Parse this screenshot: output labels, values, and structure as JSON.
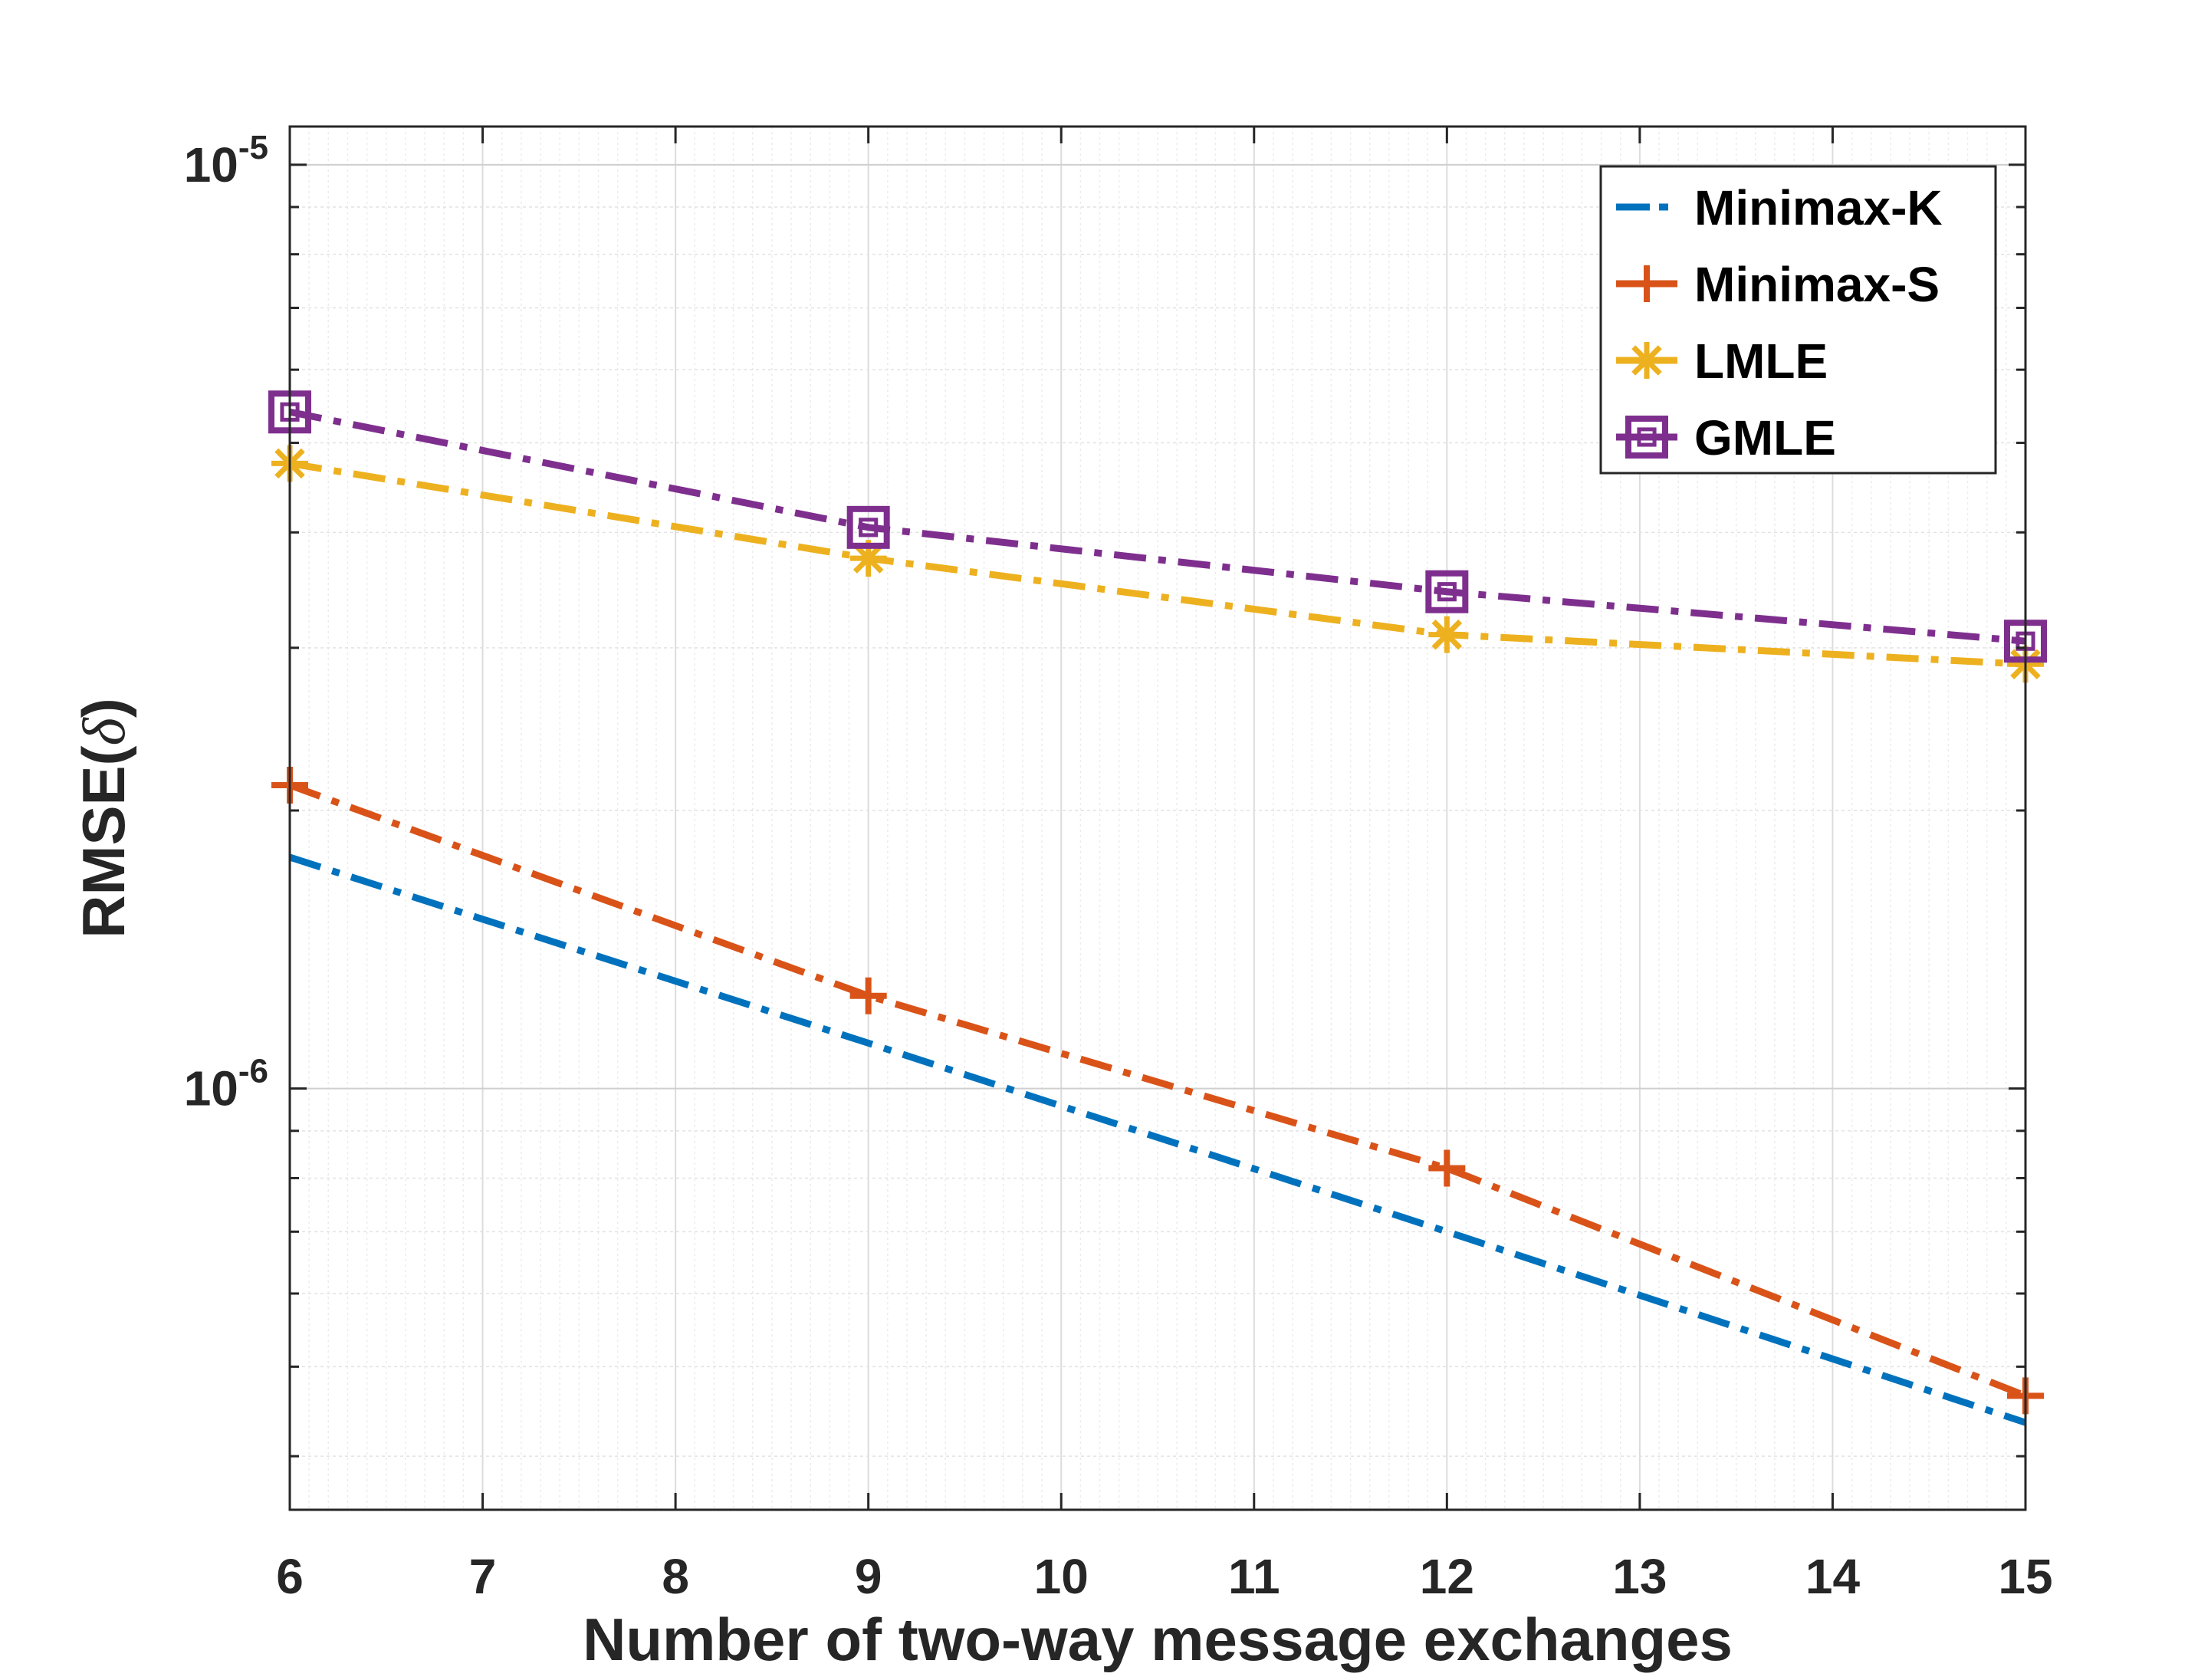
{
  "chart_data": {
    "type": "line",
    "title": "",
    "xlabel": "Number of two-way message exchanges",
    "ylabel_prefix": "RMSE(",
    "ylabel_symbol": "δ",
    "ylabel_suffix": ")",
    "x": [
      6,
      9,
      12,
      15
    ],
    "xlim": [
      6,
      15
    ],
    "xticks": [
      "6",
      "7",
      "8",
      "9",
      "10",
      "11",
      "12",
      "13",
      "14",
      "15"
    ],
    "yscale": "log",
    "ylim": [
      3.5e-07,
      1.1e-05
    ],
    "yticks": [
      {
        "value": 1e-06,
        "base": "10",
        "exp": "-6"
      },
      {
        "value": 1e-05,
        "base": "10",
        "exp": "-5"
      }
    ],
    "grid": true,
    "minor_grid": true,
    "legend_position": "top-right",
    "series": [
      {
        "name": "Minimax-K",
        "color": "#0072BD",
        "marker": "none",
        "values": [
          1.78e-06,
          1.12e-06,
          7e-07,
          4.35e-07
        ]
      },
      {
        "name": "Minimax-S",
        "color": "#D95319",
        "marker": "plus",
        "values": [
          2.13e-06,
          1.26e-06,
          8.2e-07,
          4.65e-07
        ]
      },
      {
        "name": "LMLE",
        "color": "#EDB120",
        "marker": "asterisk",
        "values": [
          4.75e-06,
          3.75e-06,
          3.1e-06,
          2.88e-06
        ]
      },
      {
        "name": "GMLE",
        "color": "#7E2F8E",
        "marker": "square",
        "values": [
          5.4e-06,
          4.05e-06,
          3.45e-06,
          3.05e-06
        ]
      }
    ]
  }
}
